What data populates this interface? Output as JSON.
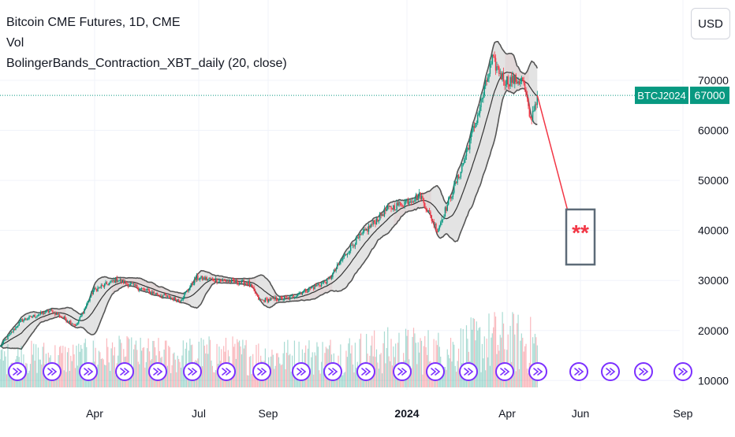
{
  "legend": {
    "symbol_line": "Bitcoin CME Futures, 1D, CME",
    "vol_line": "Vol",
    "indicator_line": "BolingerBands_Contraction_XBT_daily (20, close)"
  },
  "currency_button": "USD",
  "last_price": {
    "ticker": "BTCJ2024",
    "value": "67000",
    "color": "#089981"
  },
  "annotation": {
    "text": "**",
    "color": "#f23645",
    "box_color": "#5d6b78"
  },
  "colors": {
    "up": "#089981",
    "down": "#f23645",
    "band_fill": "#d9d9d9",
    "band_line": "#555555",
    "basis_line": "#333333",
    "contraction": "#f8cfd2",
    "event_icon": "#7b2fff"
  },
  "chart_data": {
    "type": "candlestick",
    "title": "Bitcoin CME Futures, 1D, CME",
    "x_ticks": [
      "Apr",
      "Jul",
      "Sep",
      "2024",
      "Apr",
      "Jun",
      "Sep"
    ],
    "y_ticks": [
      "10000",
      "20000",
      "30000",
      "40000",
      "50000",
      "60000",
      "70000"
    ],
    "ylim": [
      9000,
      80000
    ],
    "last_value": 67000,
    "price_path": [
      {
        "date": "2023-01-01",
        "price": 16800
      },
      {
        "date": "2023-01-20",
        "price": 22000
      },
      {
        "date": "2023-02-15",
        "price": 24000
      },
      {
        "date": "2023-03-10",
        "price": 21000
      },
      {
        "date": "2023-03-25",
        "price": 28000
      },
      {
        "date": "2023-04-15",
        "price": 30200
      },
      {
        "date": "2023-05-10",
        "price": 28000
      },
      {
        "date": "2023-06-10",
        "price": 26000
      },
      {
        "date": "2023-06-25",
        "price": 30500
      },
      {
        "date": "2023-07-15",
        "price": 30000
      },
      {
        "date": "2023-08-10",
        "price": 29500
      },
      {
        "date": "2023-08-20",
        "price": 26000
      },
      {
        "date": "2023-09-15",
        "price": 26500
      },
      {
        "date": "2023-10-20",
        "price": 30000
      },
      {
        "date": "2023-11-10",
        "price": 37000
      },
      {
        "date": "2023-12-10",
        "price": 44000
      },
      {
        "date": "2024-01-10",
        "price": 47000
      },
      {
        "date": "2024-01-25",
        "price": 40000
      },
      {
        "date": "2024-02-15",
        "price": 52000
      },
      {
        "date": "2024-03-01",
        "price": 63000
      },
      {
        "date": "2024-03-14",
        "price": 74000
      },
      {
        "date": "2024-03-25",
        "price": 70000
      },
      {
        "date": "2024-04-10",
        "price": 70000
      },
      {
        "date": "2024-04-17",
        "price": 62000
      },
      {
        "date": "2024-04-23",
        "price": 67000
      }
    ],
    "bands_period": 20,
    "volume_series": "Vol",
    "projection": [
      {
        "date": "2024-04-23",
        "price": 67000
      },
      {
        "date": "2024-05-20",
        "price": 44000
      }
    ]
  }
}
